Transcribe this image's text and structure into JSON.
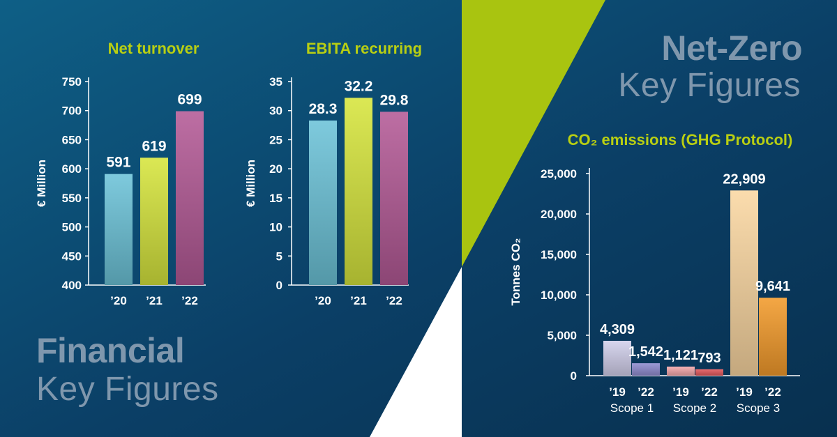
{
  "chart_data": [
    {
      "type": "bar",
      "title": "Net turnover",
      "ylabel": "€ Million",
      "categories": [
        "’20",
        "’21",
        "’22"
      ],
      "values": [
        591,
        619,
        699
      ],
      "value_labels": [
        "591",
        "619",
        "699"
      ],
      "ylim": [
        400,
        750
      ],
      "yticks": [
        400,
        450,
        500,
        550,
        600,
        650,
        700,
        750
      ],
      "colors": [
        "#6cc3d8",
        "#d6e53d",
        "#b45a96"
      ]
    },
    {
      "type": "bar",
      "title": "EBITA recurring",
      "ylabel": "€ Million",
      "categories": [
        "’20",
        "’21",
        "’22"
      ],
      "values": [
        28.3,
        32.2,
        29.8
      ],
      "value_labels": [
        "28.3",
        "32.2",
        "29.8"
      ],
      "ylim": [
        0,
        35
      ],
      "yticks": [
        0,
        5,
        10,
        15,
        20,
        25,
        30,
        35
      ],
      "colors": [
        "#6cc3d8",
        "#d6e53d",
        "#b45a96"
      ]
    },
    {
      "type": "bar",
      "title": "CO₂ emissions (GHG Protocol)",
      "ylabel": "Tonnes CO₂",
      "groups": [
        "Scope 1",
        "Scope 2",
        "Scope 3"
      ],
      "categories": [
        "’19",
        "’22"
      ],
      "series": [
        {
          "name": "Scope 1",
          "values": [
            4309,
            1542
          ],
          "value_labels": [
            "4,309",
            "1,542"
          ],
          "colors": [
            "#d2d0ec",
            "#8f8cd0"
          ]
        },
        {
          "name": "Scope 2",
          "values": [
            1121,
            793
          ],
          "value_labels": [
            "1,121",
            "793"
          ],
          "colors": [
            "#f4a7ab",
            "#e4585c"
          ]
        },
        {
          "name": "Scope 3",
          "values": [
            22909,
            9641
          ],
          "value_labels": [
            "22,909",
            "9,641"
          ],
          "colors": [
            "#fbd7a2",
            "#f39b2c"
          ]
        }
      ],
      "ylim": [
        0,
        25000
      ],
      "yticks": [
        0,
        5000,
        10000,
        15000,
        20000,
        25000
      ],
      "ytick_labels": [
        "0",
        "5,000",
        "10,000",
        "15,000",
        "20,000",
        "25,000"
      ]
    }
  ],
  "headings": {
    "financial_bold": "Financial",
    "financial_light": "Key Figures",
    "netzero_bold": "Net-Zero",
    "netzero_light": "Key Figures"
  },
  "colors": {
    "background": "#0b3d61",
    "accent_green": "#a9c410",
    "title_green": "#b9cf12",
    "heading_grey": "#7f97ad"
  }
}
